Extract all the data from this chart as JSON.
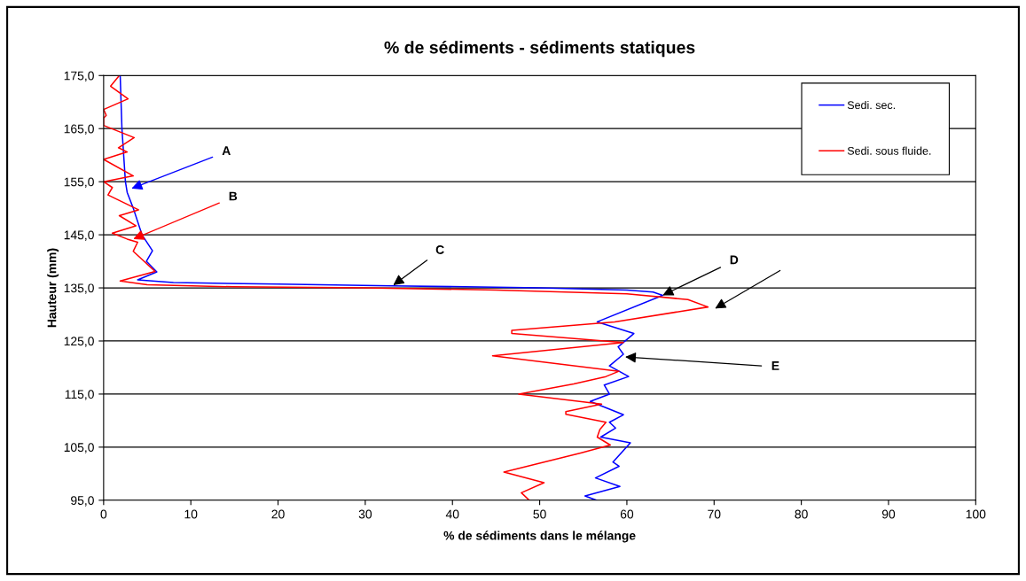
{
  "chart_data": {
    "type": "line",
    "title": "% de sédiments - sédiments statiques",
    "xlabel": "% de sédiments dans le mélange",
    "ylabel": "Hauteur (mm)",
    "xlim": [
      0,
      100
    ],
    "xticks": [
      0,
      10,
      20,
      30,
      40,
      50,
      60,
      70,
      80,
      90,
      100
    ],
    "ylim": [
      95,
      175
    ],
    "yticks": [
      {
        "value": 95,
        "label": "95,0"
      },
      {
        "value": 105,
        "label": "105,0"
      },
      {
        "value": 115,
        "label": "115,0"
      },
      {
        "value": 125,
        "label": "125,0"
      },
      {
        "value": 135,
        "label": "135,0"
      },
      {
        "value": 145,
        "label": "145,0"
      },
      {
        "value": 155,
        "label": "155,0"
      },
      {
        "value": 165,
        "label": "165,0"
      },
      {
        "value": 175,
        "label": "175,0"
      }
    ],
    "grid": "y",
    "legend": "top right",
    "marker": "none",
    "line_style": "solid",
    "series": [
      {
        "name": "Sedi. sec.",
        "color": "#0000ff",
        "x": [
          1.9,
          2.1,
          2.5,
          2.7,
          3.4,
          4.4,
          5.6,
          4.9,
          6.1,
          3.9,
          8,
          20,
          33,
          50,
          60,
          63,
          64.1,
          56.6,
          60.8,
          59.0,
          59.6,
          58.0,
          60.2,
          57.4,
          58.0,
          55.8,
          59.6,
          58.0,
          58.7,
          57.0,
          60.4,
          58.4,
          59.1,
          56.4,
          59.2,
          55.2,
          56.5
        ],
        "values": [
          175,
          165,
          155,
          153,
          150,
          145,
          142,
          140,
          138,
          136.5,
          136.0,
          135.7,
          135.4,
          135.0,
          134.6,
          134.2,
          133.6,
          128.6,
          126.4,
          123.9,
          122.5,
          120.3,
          118.3,
          116.7,
          115,
          113.6,
          111.1,
          109.7,
          108.6,
          106.9,
          105.8,
          102.2,
          101.4,
          99.2,
          97.6,
          95.8,
          95
        ]
      },
      {
        "name": "Sedi. sous fluide.",
        "color": "#ff0000",
        "x": [
          1.8,
          0.8,
          2.8,
          0,
          0.3,
          0,
          0,
          3.5,
          1.7,
          2.7,
          0,
          3.4,
          0,
          1.0,
          0.5,
          4.0,
          1.8,
          3.7,
          1.0,
          2.7,
          3.9,
          3.4,
          5.9,
          1.9,
          5,
          15,
          30,
          45,
          60,
          67,
          69.3,
          58.6,
          46.8,
          46.8,
          59.6,
          44.6,
          59.1,
          57.6,
          53.9,
          47.6,
          57.1,
          53.0,
          53.0,
          57.6,
          56.9,
          56.6,
          58.1,
          54.7,
          45.9,
          50.5,
          47.9,
          48.8
        ],
        "values": [
          175,
          173,
          170.6,
          168.6,
          167.5,
          167,
          165.6,
          163.3,
          161.4,
          160.6,
          159.2,
          156.1,
          155,
          153.9,
          152.5,
          149.7,
          148.6,
          146.7,
          145.3,
          144.2,
          143.6,
          141.9,
          138.1,
          136.3,
          135.6,
          135.2,
          135.0,
          134.6,
          133.9,
          132.8,
          131.4,
          128.6,
          127,
          126.4,
          124.7,
          122.2,
          119.3,
          118.3,
          116.9,
          115,
          113.1,
          111.7,
          111.2,
          109.7,
          108.3,
          106.9,
          105.4,
          103.9,
          100.3,
          98.3,
          96.4,
          95
        ]
      }
    ],
    "annotations": [
      {
        "text": "A",
        "x": 3.2,
        "y": 153.7
      },
      {
        "text": "B",
        "x": 3.4,
        "y": 144.2
      },
      {
        "text": "C",
        "x": 33.2,
        "y": 135.5
      },
      {
        "text": "D",
        "x": 64.1,
        "y": 133.6
      },
      {
        "text": "E",
        "x": 59.8,
        "y": 122
      }
    ]
  }
}
